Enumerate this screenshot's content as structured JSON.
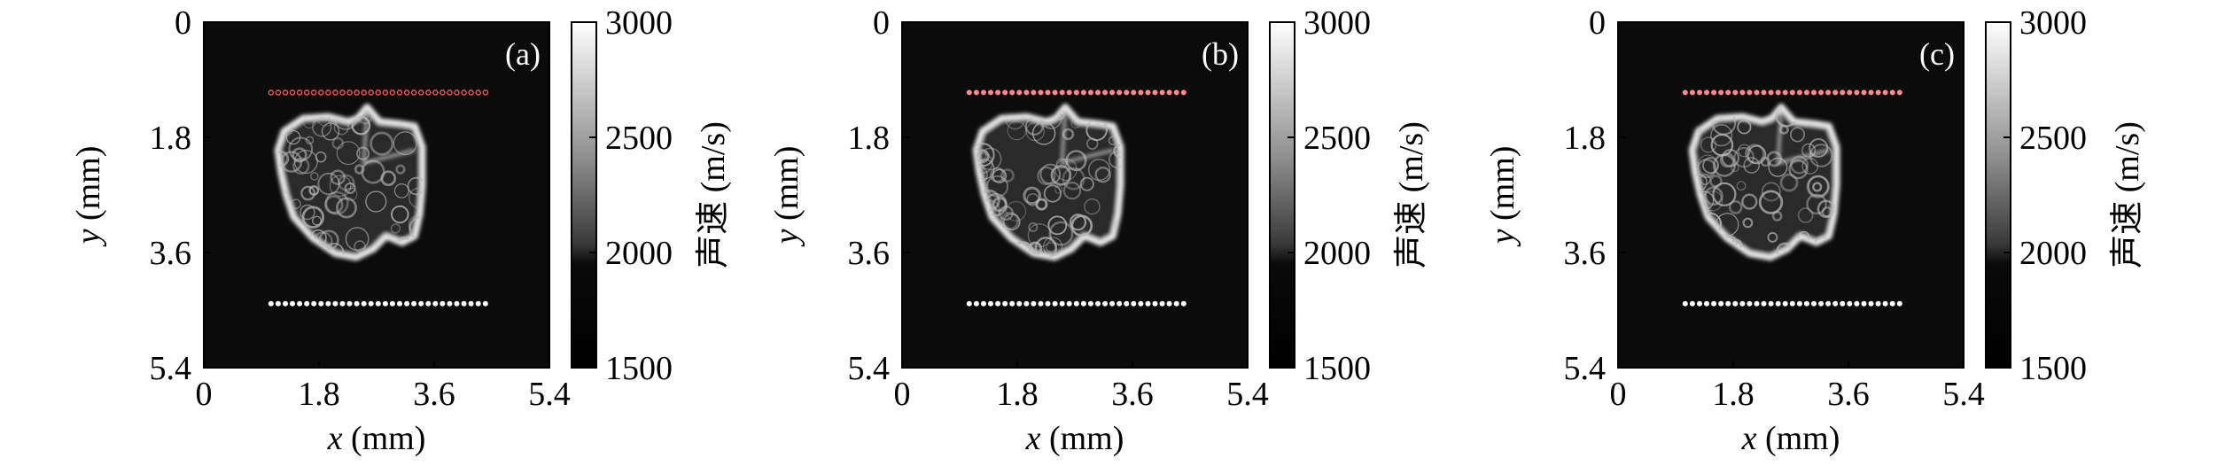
{
  "figure": {
    "x_axis_label_var": "x",
    "x_axis_label_unit": "(mm)",
    "y_axis_label_var": "y",
    "y_axis_label_unit": "(mm)",
    "x_ticks": [
      "0",
      "1.8",
      "3.6",
      "5.4"
    ],
    "y_ticks": [
      "0",
      "1.8",
      "3.6",
      "5.4"
    ],
    "x_tick_values": [
      0,
      1.8,
      3.6,
      5.4
    ],
    "y_tick_values": [
      0,
      1.8,
      3.6,
      5.4
    ],
    "colorbar_label": "声速 (m/s)",
    "colorbar_ticks": [
      "3000",
      "2500",
      "2000",
      "1500"
    ],
    "colorbar_tick_values": [
      3000,
      2500,
      2000,
      1500
    ],
    "colorbar_range": [
      1500,
      3000
    ],
    "background_color": "#0b0b0b",
    "bone_color": "#e8e8e8"
  },
  "panels": [
    {
      "label": "(a)",
      "source_color": "#ff5a5a",
      "source_style": "hollow",
      "receiver_color": "#ffffff"
    },
    {
      "label": "(b)",
      "source_color": "#ff8a8a",
      "source_style": "filled",
      "receiver_color": "#ffffff"
    },
    {
      "label": "(c)",
      "source_color": "#ff8a8a",
      "source_style": "filled",
      "receiver_color": "#ffffff"
    }
  ]
}
